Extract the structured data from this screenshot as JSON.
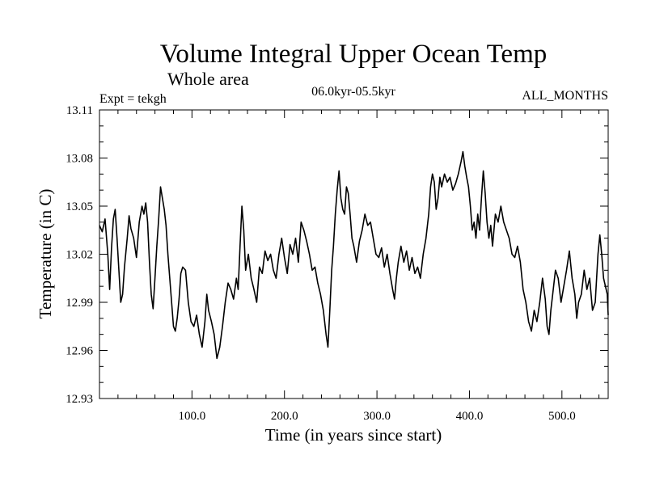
{
  "header": {
    "title": "Volume Integral Upper Ocean Temp",
    "subtitle": "Whole area",
    "expt": "Expt = tekgh",
    "period": "06.0kyr-05.5kyr",
    "months": "ALL_MONTHS"
  },
  "chart_data": {
    "type": "line",
    "title": "Volume Integral Upper Ocean Temp",
    "xlabel": "Time (in years since start)",
    "ylabel": "Temperature (in C)",
    "xlim": [
      0,
      550
    ],
    "ylim": [
      12.93,
      13.11
    ],
    "grid": false,
    "xticks": [
      100,
      200,
      300,
      400,
      500
    ],
    "xtick_labels": [
      "100.0",
      "200.0",
      "300.0",
      "400.0",
      "500.0"
    ],
    "yticks": [
      12.93,
      12.96,
      12.99,
      13.02,
      13.05,
      13.08,
      13.11
    ],
    "ytick_labels": [
      "12.93",
      "12.96",
      "12.99",
      "13.02",
      "13.05",
      "13.08",
      "13.11"
    ],
    "series": [
      {
        "name": "Volume Integral Upper Ocean Temp",
        "color": "#000000",
        "points": [
          [
            0,
            13.038
          ],
          [
            3,
            13.034
          ],
          [
            6,
            13.042
          ],
          [
            9,
            13.02
          ],
          [
            11,
            12.998
          ],
          [
            13,
            13.024
          ],
          [
            15,
            13.042
          ],
          [
            17,
            13.048
          ],
          [
            19,
            13.03
          ],
          [
            21,
            13.01
          ],
          [
            23,
            12.99
          ],
          [
            25,
            12.995
          ],
          [
            27,
            13.012
          ],
          [
            30,
            13.03
          ],
          [
            32,
            13.044
          ],
          [
            34,
            13.036
          ],
          [
            37,
            13.03
          ],
          [
            40,
            13.018
          ],
          [
            43,
            13.04
          ],
          [
            46,
            13.05
          ],
          [
            48,
            13.045
          ],
          [
            50,
            13.052
          ],
          [
            52,
            13.04
          ],
          [
            54,
            13.015
          ],
          [
            56,
            12.995
          ],
          [
            58,
            12.986
          ],
          [
            60,
            13.005
          ],
          [
            62,
            13.025
          ],
          [
            64,
            13.042
          ],
          [
            66,
            13.062
          ],
          [
            68,
            13.055
          ],
          [
            70,
            13.048
          ],
          [
            72,
            13.038
          ],
          [
            74,
            13.02
          ],
          [
            76,
            13.005
          ],
          [
            78,
            12.99
          ],
          [
            80,
            12.975
          ],
          [
            82,
            12.972
          ],
          [
            84,
            12.98
          ],
          [
            86,
            12.992
          ],
          [
            88,
            13.008
          ],
          [
            90,
            13.012
          ],
          [
            93,
            13.01
          ],
          [
            96,
            12.99
          ],
          [
            99,
            12.978
          ],
          [
            102,
            12.975
          ],
          [
            105,
            12.982
          ],
          [
            108,
            12.97
          ],
          [
            111,
            12.962
          ],
          [
            114,
            12.978
          ],
          [
            116,
            12.995
          ],
          [
            118,
            12.985
          ],
          [
            121,
            12.978
          ],
          [
            124,
            12.97
          ],
          [
            127,
            12.955
          ],
          [
            130,
            12.962
          ],
          [
            133,
            12.975
          ],
          [
            136,
            12.99
          ],
          [
            139,
            13.002
          ],
          [
            142,
            12.998
          ],
          [
            145,
            12.992
          ],
          [
            148,
            13.005
          ],
          [
            150,
            12.998
          ],
          [
            152,
            13.025
          ],
          [
            154,
            13.05
          ],
          [
            156,
            13.035
          ],
          [
            158,
            13.01
          ],
          [
            161,
            13.02
          ],
          [
            164,
            13.005
          ],
          [
            167,
            12.998
          ],
          [
            170,
            12.99
          ],
          [
            173,
            13.012
          ],
          [
            176,
            13.008
          ],
          [
            179,
            13.022
          ],
          [
            182,
            13.016
          ],
          [
            185,
            13.02
          ],
          [
            188,
            13.01
          ],
          [
            191,
            13.005
          ],
          [
            194,
            13.02
          ],
          [
            197,
            13.03
          ],
          [
            200,
            13.018
          ],
          [
            203,
            13.008
          ],
          [
            206,
            13.026
          ],
          [
            209,
            13.02
          ],
          [
            212,
            13.03
          ],
          [
            215,
            13.015
          ],
          [
            218,
            13.04
          ],
          [
            221,
            13.035
          ],
          [
            224,
            13.028
          ],
          [
            227,
            13.02
          ],
          [
            230,
            13.01
          ],
          [
            233,
            13.012
          ],
          [
            236,
            13.002
          ],
          [
            239,
            12.995
          ],
          [
            242,
            12.985
          ],
          [
            245,
            12.97
          ],
          [
            247,
            12.962
          ],
          [
            249,
            12.985
          ],
          [
            251,
            13.01
          ],
          [
            253,
            13.025
          ],
          [
            255,
            13.045
          ],
          [
            257,
            13.06
          ],
          [
            259,
            13.072
          ],
          [
            261,
            13.055
          ],
          [
            263,
            13.048
          ],
          [
            265,
            13.045
          ],
          [
            267,
            13.062
          ],
          [
            269,
            13.058
          ],
          [
            271,
            13.045
          ],
          [
            273,
            13.03
          ],
          [
            275,
            13.025
          ],
          [
            278,
            13.015
          ],
          [
            281,
            13.028
          ],
          [
            284,
            13.035
          ],
          [
            287,
            13.045
          ],
          [
            290,
            13.038
          ],
          [
            293,
            13.04
          ],
          [
            296,
            13.03
          ],
          [
            299,
            13.02
          ],
          [
            302,
            13.018
          ],
          [
            305,
            13.024
          ],
          [
            308,
            13.012
          ],
          [
            311,
            13.02
          ],
          [
            314,
            13.008
          ],
          [
            317,
            12.998
          ],
          [
            319,
            12.992
          ],
          [
            321,
            13.005
          ],
          [
            323,
            13.015
          ],
          [
            326,
            13.025
          ],
          [
            329,
            13.015
          ],
          [
            332,
            13.022
          ],
          [
            335,
            13.01
          ],
          [
            338,
            13.018
          ],
          [
            341,
            13.008
          ],
          [
            344,
            13.012
          ],
          [
            347,
            13.005
          ],
          [
            350,
            13.02
          ],
          [
            353,
            13.03
          ],
          [
            356,
            13.045
          ],
          [
            358,
            13.062
          ],
          [
            360,
            13.07
          ],
          [
            362,
            13.065
          ],
          [
            364,
            13.048
          ],
          [
            366,
            13.055
          ],
          [
            368,
            13.068
          ],
          [
            370,
            13.062
          ],
          [
            373,
            13.07
          ],
          [
            376,
            13.065
          ],
          [
            379,
            13.068
          ],
          [
            382,
            13.06
          ],
          [
            385,
            13.064
          ],
          [
            388,
            13.07
          ],
          [
            391,
            13.078
          ],
          [
            393,
            13.084
          ],
          [
            395,
            13.075
          ],
          [
            397,
            13.068
          ],
          [
            399,
            13.062
          ],
          [
            401,
            13.05
          ],
          [
            403,
            13.035
          ],
          [
            405,
            13.04
          ],
          [
            407,
            13.03
          ],
          [
            409,
            13.045
          ],
          [
            411,
            13.035
          ],
          [
            413,
            13.055
          ],
          [
            415,
            13.072
          ],
          [
            417,
            13.058
          ],
          [
            419,
            13.04
          ],
          [
            421,
            13.03
          ],
          [
            423,
            13.038
          ],
          [
            425,
            13.025
          ],
          [
            428,
            13.045
          ],
          [
            431,
            13.04
          ],
          [
            434,
            13.05
          ],
          [
            437,
            13.04
          ],
          [
            440,
            13.035
          ],
          [
            443,
            13.03
          ],
          [
            446,
            13.02
          ],
          [
            449,
            13.018
          ],
          [
            452,
            13.025
          ],
          [
            455,
            13.015
          ],
          [
            458,
            12.998
          ],
          [
            461,
            12.99
          ],
          [
            464,
            12.978
          ],
          [
            467,
            12.972
          ],
          [
            470,
            12.985
          ],
          [
            473,
            12.978
          ],
          [
            476,
            12.99
          ],
          [
            479,
            13.005
          ],
          [
            482,
            12.992
          ],
          [
            484,
            12.975
          ],
          [
            486,
            12.97
          ],
          [
            488,
            12.985
          ],
          [
            490,
            12.995
          ],
          [
            493,
            13.01
          ],
          [
            496,
            13.005
          ],
          [
            499,
            12.99
          ],
          [
            502,
            13.0
          ],
          [
            505,
            13.01
          ],
          [
            508,
            13.022
          ],
          [
            511,
            13.005
          ],
          [
            514,
            12.995
          ],
          [
            516,
            12.98
          ],
          [
            518,
            12.99
          ],
          [
            521,
            12.995
          ],
          [
            524,
            13.01
          ],
          [
            527,
            12.998
          ],
          [
            530,
            13.005
          ],
          [
            533,
            12.985
          ],
          [
            536,
            12.99
          ],
          [
            539,
            13.02
          ],
          [
            541,
            13.032
          ],
          [
            543,
            13.02
          ],
          [
            545,
            13.005
          ],
          [
            547,
            13.0
          ],
          [
            549,
            12.995
          ],
          [
            550,
            12.982
          ]
        ]
      }
    ]
  }
}
